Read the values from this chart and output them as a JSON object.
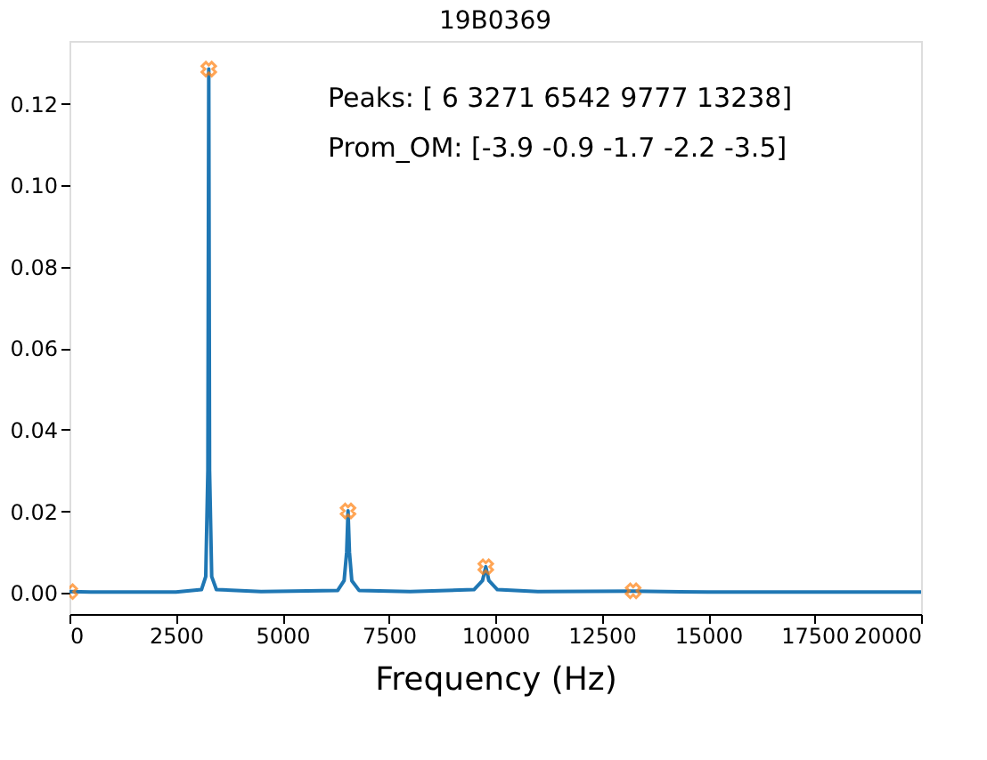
{
  "chart_data": {
    "type": "line",
    "title": "19B0369",
    "xlabel": "Frequency (Hz)",
    "xlim": [
      0,
      20000
    ],
    "xticks": [
      0,
      2500,
      5000,
      7500,
      10000,
      12500,
      15000,
      17500,
      20000
    ],
    "ylim": [
      -0.0052,
      0.1354
    ],
    "yticks": [
      {
        "value": 0,
        "label": "0.00"
      },
      {
        "value": 0.02,
        "label": "0.02"
      },
      {
        "value": 0.04,
        "label": "0.04"
      },
      {
        "value": 0.06,
        "label": "0.06"
      },
      {
        "value": 0.08,
        "label": "0.08"
      },
      {
        "value": 0.1,
        "label": "0.10"
      },
      {
        "value": 0.12,
        "label": "0.12"
      }
    ],
    "grid": false,
    "annotations": [
      "Peaks: [    6  3271  6542  9777 13238]",
      "Prom_OM: [-3.9 -0.9 -1.7 -2.2 -3.5]"
    ],
    "series": [
      {
        "color": "#1f77b4",
        "marker": "none",
        "x": [
          0,
          500,
          2500,
          3100,
          3200,
          3250,
          3271,
          3290,
          3340,
          3450,
          4500,
          6300,
          6450,
          6510,
          6542,
          6575,
          6630,
          6800,
          8000,
          9500,
          9700,
          9777,
          9850,
          10050,
          11000,
          13238,
          15000,
          17500,
          20000
        ],
        "values": [
          0.0003,
          0.0002,
          0.0002,
          0.0008,
          0.004,
          0.03,
          0.1285,
          0.03,
          0.004,
          0.0008,
          0.0003,
          0.0006,
          0.003,
          0.01,
          0.0201,
          0.01,
          0.003,
          0.0006,
          0.0003,
          0.0008,
          0.003,
          0.0064,
          0.003,
          0.0008,
          0.0003,
          0.0004,
          0.0002,
          0.0002,
          0.0002
        ]
      },
      {
        "type": "scatter",
        "color": "#ff7f0e",
        "marker": "cross",
        "x": [
          6,
          3271,
          6542,
          9777,
          13238
        ],
        "values": [
          0.0003,
          0.1285,
          0.0201,
          0.0064,
          0.0005
        ]
      }
    ]
  }
}
